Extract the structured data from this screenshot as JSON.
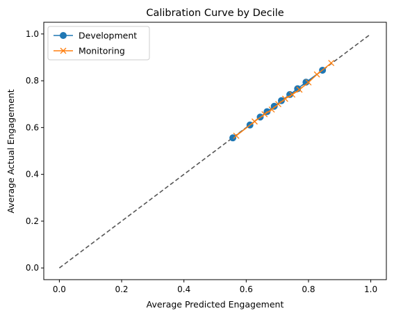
{
  "chart_data": {
    "type": "line",
    "title": "Calibration Curve by Decile",
    "xlabel": "Average Predicted Engagement",
    "ylabel": "Average Actual Engagement",
    "xlim": [
      -0.05,
      1.05
    ],
    "ylim": [
      -0.05,
      1.05
    ],
    "xticks": [
      "0.0",
      "0.2",
      "0.4",
      "0.6",
      "0.8",
      "1.0"
    ],
    "yticks": [
      "0.0",
      "0.2",
      "0.4",
      "0.6",
      "0.8",
      "1.0"
    ],
    "grid": false,
    "legend_position": "top-left",
    "reference_line": {
      "x": [
        0,
        1
      ],
      "y": [
        0,
        1
      ],
      "style": "dashed",
      "color": "#555555"
    },
    "series": [
      {
        "name": "Development",
        "color": "#1f77b4",
        "marker": "circle",
        "x": [
          0.557,
          0.612,
          0.645,
          0.667,
          0.69,
          0.713,
          0.74,
          0.765,
          0.792,
          0.845
        ],
        "y": [
          0.556,
          0.611,
          0.645,
          0.668,
          0.691,
          0.715,
          0.741,
          0.766,
          0.794,
          0.845
        ]
      },
      {
        "name": "Monitoring",
        "color": "#ff7f0e",
        "marker": "x",
        "x": [
          0.568,
          0.627,
          0.659,
          0.682,
          0.703,
          0.725,
          0.748,
          0.771,
          0.8,
          0.827,
          0.873
        ],
        "y": [
          0.565,
          0.626,
          0.657,
          0.677,
          0.7,
          0.723,
          0.741,
          0.762,
          0.793,
          0.827,
          0.876
        ]
      }
    ]
  }
}
